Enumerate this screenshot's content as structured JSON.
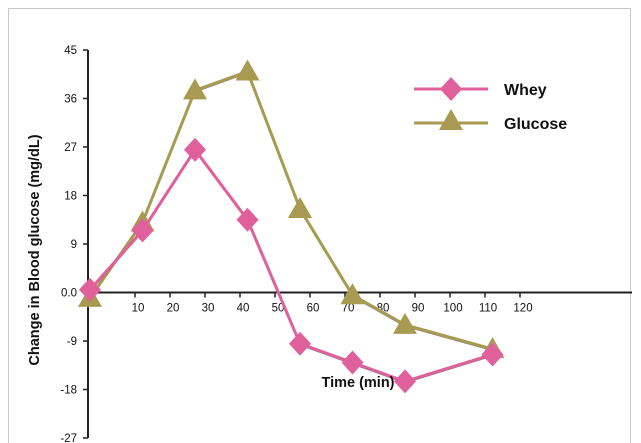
{
  "chart_data": {
    "type": "line",
    "title": "",
    "xlabel": "Time (min)",
    "ylabel": "Change in Blood glucose (mg/dL)",
    "ylim": [
      -27,
      45
    ],
    "xlim": [
      0,
      125
    ],
    "yticks": [
      "45",
      "36",
      "27",
      "18",
      "9",
      "0.0",
      "-9",
      "-18",
      "-27"
    ],
    "xticks": [
      "10",
      "20",
      "30",
      "40",
      "50",
      "60",
      "70",
      "80",
      "90",
      "100",
      "110",
      "120"
    ],
    "grid": false,
    "legend_position": "top-right",
    "series": [
      {
        "name": "Whey",
        "marker": "diamond",
        "color": "#e0609c",
        "x": [
          0,
          15,
          30,
          45,
          60,
          75,
          90,
          115
        ],
        "y": [
          0.5,
          11.5,
          26.5,
          13.5,
          -9.5,
          -13,
          -16.5,
          -11.5
        ]
      },
      {
        "name": "Glucose",
        "marker": "triangle",
        "color": "#a89a50",
        "x": [
          0,
          15,
          30,
          45,
          60,
          75,
          90,
          115
        ],
        "y": [
          -1,
          13,
          37.5,
          41,
          15.5,
          -0.5,
          -6,
          -10.5
        ]
      }
    ]
  }
}
